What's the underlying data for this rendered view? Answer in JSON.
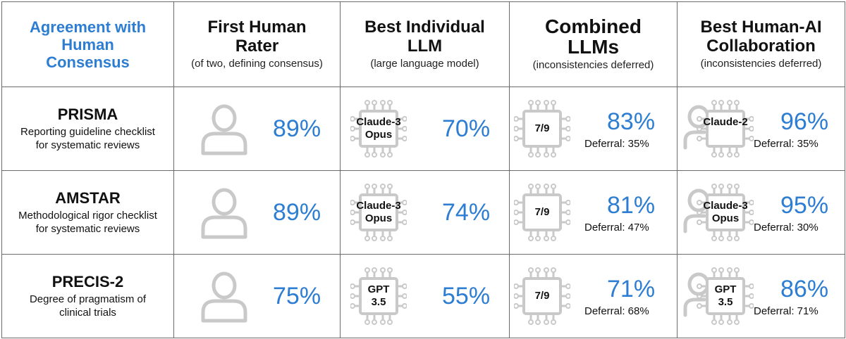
{
  "colors": {
    "accent": "#2d7dd2",
    "icon_gray": "#c9c9c9",
    "border": "#6b6b6b"
  },
  "header": {
    "corner": [
      "Agreement with",
      "Human",
      "Consensus"
    ],
    "columns": [
      {
        "title": [
          "First Human",
          "Rater"
        ],
        "subtitle": "(of two, defining consensus)"
      },
      {
        "title": [
          "Best Individual",
          "LLM"
        ],
        "subtitle": "(large language model)"
      },
      {
        "title": [
          "Combined",
          "LLMs"
        ],
        "subtitle": "(inconsistencies deferred)"
      },
      {
        "title": [
          "Best Human-AI",
          "Collaboration"
        ],
        "subtitle": "(inconsistencies deferred)"
      }
    ]
  },
  "rows": [
    {
      "name": "PRISMA",
      "desc": [
        "Reporting guideline checklist",
        "for systematic reviews"
      ],
      "human": {
        "icon": "person-icon",
        "pct": "89%"
      },
      "llm": {
        "icon": "chip-icon",
        "model": [
          "Claude-3",
          "Opus"
        ],
        "pct": "70%"
      },
      "combined": {
        "icon": "chip-icon",
        "label": "7/9",
        "pct": "83%",
        "deferral": "Deferral: 35%"
      },
      "collab": {
        "icon": "person-chip-icon",
        "model": [
          "Claude-2"
        ],
        "pct": "96%",
        "deferral": "Deferral: 35%"
      }
    },
    {
      "name": "AMSTAR",
      "desc": [
        "Methodological rigor checklist",
        "for systematic reviews"
      ],
      "human": {
        "icon": "person-icon",
        "pct": "89%"
      },
      "llm": {
        "icon": "chip-icon",
        "model": [
          "Claude-3",
          "Opus"
        ],
        "pct": "74%"
      },
      "combined": {
        "icon": "chip-icon",
        "label": "7/9",
        "pct": "81%",
        "deferral": "Deferral: 47%"
      },
      "collab": {
        "icon": "person-chip-icon",
        "model": [
          "Claude-3",
          "Opus"
        ],
        "pct": "95%",
        "deferral": "Deferral: 30%"
      }
    },
    {
      "name": "PRECIS-2",
      "desc": [
        "Degree of pragmatism of",
        "clinical trials"
      ],
      "human": {
        "icon": "person-icon",
        "pct": "75%"
      },
      "llm": {
        "icon": "chip-icon",
        "model": [
          "GPT",
          "3.5"
        ],
        "pct": "55%"
      },
      "combined": {
        "icon": "chip-icon",
        "label": "7/9",
        "pct": "71%",
        "deferral": "Deferral: 68%"
      },
      "collab": {
        "icon": "person-chip-icon",
        "model": [
          "GPT",
          "3.5"
        ],
        "pct": "86%",
        "deferral": "Deferral: 71%"
      }
    }
  ]
}
